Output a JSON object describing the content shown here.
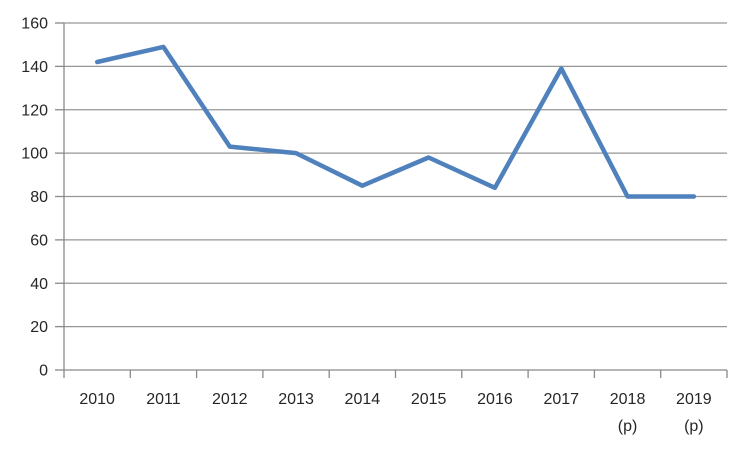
{
  "chart_data": {
    "type": "line",
    "title": "",
    "xlabel": "",
    "ylabel": "",
    "categories": [
      "2010",
      "2011",
      "2012",
      "2013",
      "2014",
      "2015",
      "2016",
      "2017",
      "2018 (p)",
      "2019 (p)"
    ],
    "values": [
      142,
      149,
      103,
      100,
      85,
      98,
      84,
      139,
      80,
      80
    ],
    "series": [
      {
        "name": "series1",
        "values": [
          142,
          149,
          103,
          100,
          85,
          98,
          84,
          139,
          80,
          80
        ]
      }
    ],
    "ylim": [
      0,
      160
    ],
    "ytick_step": 20,
    "ytick_labels": [
      "0",
      "20",
      "40",
      "60",
      "80",
      "100",
      "120",
      "140",
      "160"
    ],
    "grid": true,
    "legend_position": "none",
    "colors": {
      "line": "#4F81BD",
      "gridline": "#969696",
      "axis": "#898989",
      "label": "#262626",
      "background": "#FFFFFF"
    }
  }
}
